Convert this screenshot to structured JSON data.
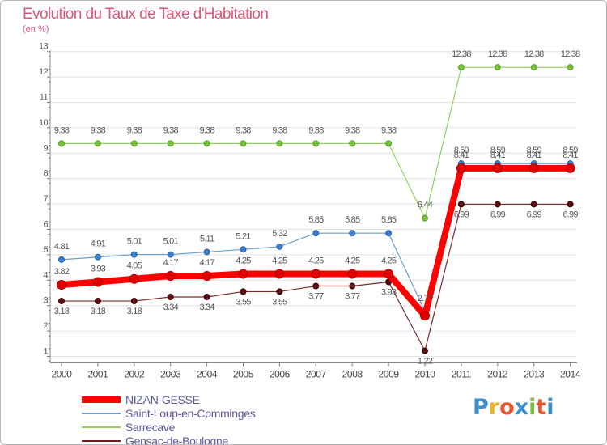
{
  "header": {
    "title": "Evolution du Taux de Taxe d'Habitation",
    "unit": "(en %)"
  },
  "logo": {
    "text": "Proxiti",
    "colors": [
      "#3a8fd0",
      "#e8b62a",
      "#e8542d",
      "#3a8fd0",
      "#7bbf3a",
      "#e8542d",
      "#3a8fd0"
    ]
  },
  "chart_data": {
    "type": "line",
    "title": "Evolution du Taux de Taxe d'Habitation",
    "xlabel": "",
    "ylabel": "(en %)",
    "x": [
      "2000",
      "2001",
      "2002",
      "2003",
      "2004",
      "2005",
      "2006",
      "2007",
      "2008",
      "2009",
      "2010",
      "2011",
      "2012",
      "2013",
      "2014"
    ],
    "ylim": [
      1,
      13
    ],
    "yticks": [
      1,
      2,
      3,
      4,
      5,
      6,
      7,
      8,
      9,
      10,
      11,
      12,
      13
    ],
    "grid": "horizontal",
    "legend_position": "bottom-left",
    "series": [
      {
        "name": "NIZAN-GESSE",
        "color": "#ff0000",
        "values": [
          3.82,
          3.93,
          4.05,
          4.17,
          4.17,
          4.25,
          4.25,
          4.25,
          4.25,
          4.25,
          2.6,
          8.41,
          8.41,
          8.41,
          8.41
        ],
        "labels": [
          "3.82",
          "3.93",
          "4.05",
          "4.17",
          "4.17",
          "4.25",
          "4.25",
          "4.25",
          "4.25",
          "4.25",
          "",
          "8.41",
          "8.41",
          "8.41",
          "8.41"
        ]
      },
      {
        "name": "Saint-Loup-en-Comminges",
        "color": "#6a9fcf",
        "values": [
          4.81,
          4.91,
          5.01,
          5.01,
          5.11,
          5.21,
          5.32,
          5.85,
          5.85,
          5.85,
          2.77,
          8.59,
          8.59,
          8.59,
          8.59
        ],
        "labels": [
          "4.81",
          "4.91",
          "5.01",
          "5.01",
          "5.11",
          "5.21",
          "5.32",
          "5.85",
          "5.85",
          "5.85",
          "2.77",
          "8.59",
          "8.59",
          "8.59",
          "8.59"
        ]
      },
      {
        "name": "Sarrecave",
        "color": "#8fd05a",
        "values": [
          9.38,
          9.38,
          9.38,
          9.38,
          9.38,
          9.38,
          9.38,
          9.38,
          9.38,
          9.38,
          6.44,
          12.38,
          12.38,
          12.38,
          12.38
        ],
        "labels": [
          "9.38",
          "9.38",
          "9.38",
          "9.38",
          "9.38",
          "9.38",
          "9.38",
          "9.38",
          "9.38",
          "9.38",
          "6.44",
          "12.38",
          "12.38",
          "12.38",
          "12.38"
        ]
      },
      {
        "name": "Gensac-de-Boulogne",
        "color": "#6b1a1a",
        "values": [
          3.18,
          3.18,
          3.18,
          3.34,
          3.34,
          3.55,
          3.55,
          3.77,
          3.77,
          3.93,
          1.22,
          6.99,
          6.99,
          6.99,
          6.99
        ],
        "labels": [
          "3.18",
          "3.18",
          "3.18",
          "3.34",
          "3.34",
          "3.55",
          "3.55",
          "3.77",
          "3.77",
          "3.93",
          "1.22",
          "6.99",
          "6.99",
          "6.99",
          "6.99"
        ]
      }
    ]
  }
}
